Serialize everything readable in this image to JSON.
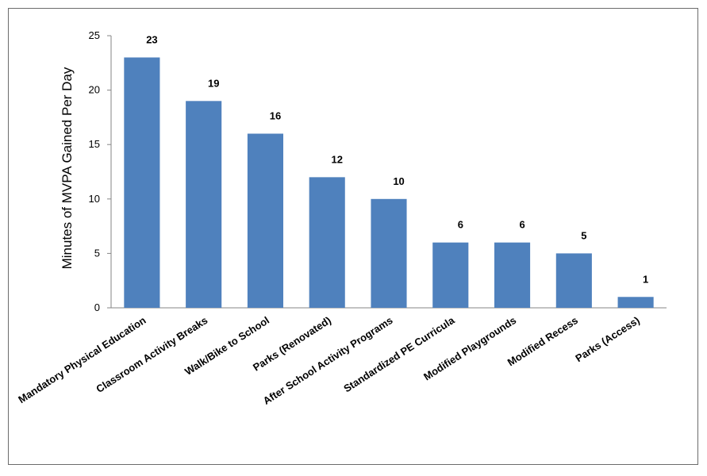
{
  "chart_data": {
    "type": "bar",
    "title": "",
    "xlabel": "",
    "ylabel": "Minutes of MVPA Gained Per Day",
    "ylim": [
      0,
      25
    ],
    "yticks": [
      0,
      5,
      10,
      15,
      20,
      25
    ],
    "grid": false,
    "legend": "none",
    "bar_color": "#4f81bd",
    "categories": [
      "Mandatory Physical Education",
      "Classroom Activity Breaks",
      "Walk/Bike to School",
      "Parks (Renovated)",
      "After School Activity Programs",
      "Standardized PE Curricula",
      "Modified Playgrounds",
      "Modified Recess",
      "Parks (Access)"
    ],
    "values": [
      23,
      19,
      16,
      12,
      10,
      6,
      6,
      5,
      1
    ]
  }
}
